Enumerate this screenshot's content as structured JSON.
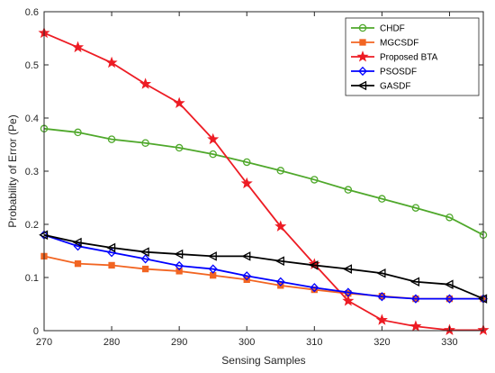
{
  "chart_data": {
    "type": "line",
    "xlabel": "Sensing Samples",
    "ylabel": "Probability of Error (Pe)",
    "xlim": [
      270,
      335
    ],
    "ylim": [
      0,
      0.6
    ],
    "xticks": [
      270,
      280,
      290,
      300,
      310,
      320,
      330
    ],
    "xtick_labels": [
      "270",
      "280",
      "290",
      "300",
      "310",
      "320",
      "330"
    ],
    "yticks": [
      0,
      0.1,
      0.2,
      0.3,
      0.4,
      0.5,
      0.6
    ],
    "ytick_labels": [
      "0",
      "0.1",
      "0.2",
      "0.3",
      "0.4",
      "0.5",
      "0.6"
    ],
    "grid": false,
    "legend_position": "top-right",
    "x": [
      270,
      275,
      280,
      285,
      290,
      295,
      300,
      305,
      310,
      315,
      320,
      325,
      330,
      335
    ],
    "series": [
      {
        "name": "CHDF",
        "color": "#4fa82b",
        "marker": "circle",
        "values": [
          0.38,
          0.373,
          0.36,
          0.353,
          0.344,
          0.332,
          0.317,
          0.301,
          0.284,
          0.265,
          0.248,
          0.231,
          0.213,
          0.18
        ]
      },
      {
        "name": "MGCSDF",
        "color": "#f26522",
        "marker": "square",
        "values": [
          0.14,
          0.126,
          0.123,
          0.116,
          0.112,
          0.104,
          0.096,
          0.085,
          0.077,
          0.07,
          0.065,
          0.06,
          0.06,
          0.06
        ]
      },
      {
        "name": "Proposed BTA",
        "color": "#ed1c24",
        "marker": "star",
        "values": [
          0.56,
          0.533,
          0.504,
          0.464,
          0.428,
          0.36,
          0.277,
          0.196,
          0.125,
          0.056,
          0.02,
          0.008,
          0.001,
          0.001
        ]
      },
      {
        "name": "PSOSDF",
        "color": "#0000ff",
        "marker": "diamond",
        "values": [
          0.18,
          0.159,
          0.147,
          0.135,
          0.122,
          0.116,
          0.103,
          0.092,
          0.081,
          0.072,
          0.064,
          0.06,
          0.06,
          0.06
        ]
      },
      {
        "name": "GASDF",
        "color": "#000000",
        "marker": "triangle-left",
        "values": [
          0.18,
          0.166,
          0.156,
          0.148,
          0.144,
          0.14,
          0.14,
          0.131,
          0.123,
          0.116,
          0.108,
          0.092,
          0.087,
          0.06
        ]
      }
    ]
  }
}
